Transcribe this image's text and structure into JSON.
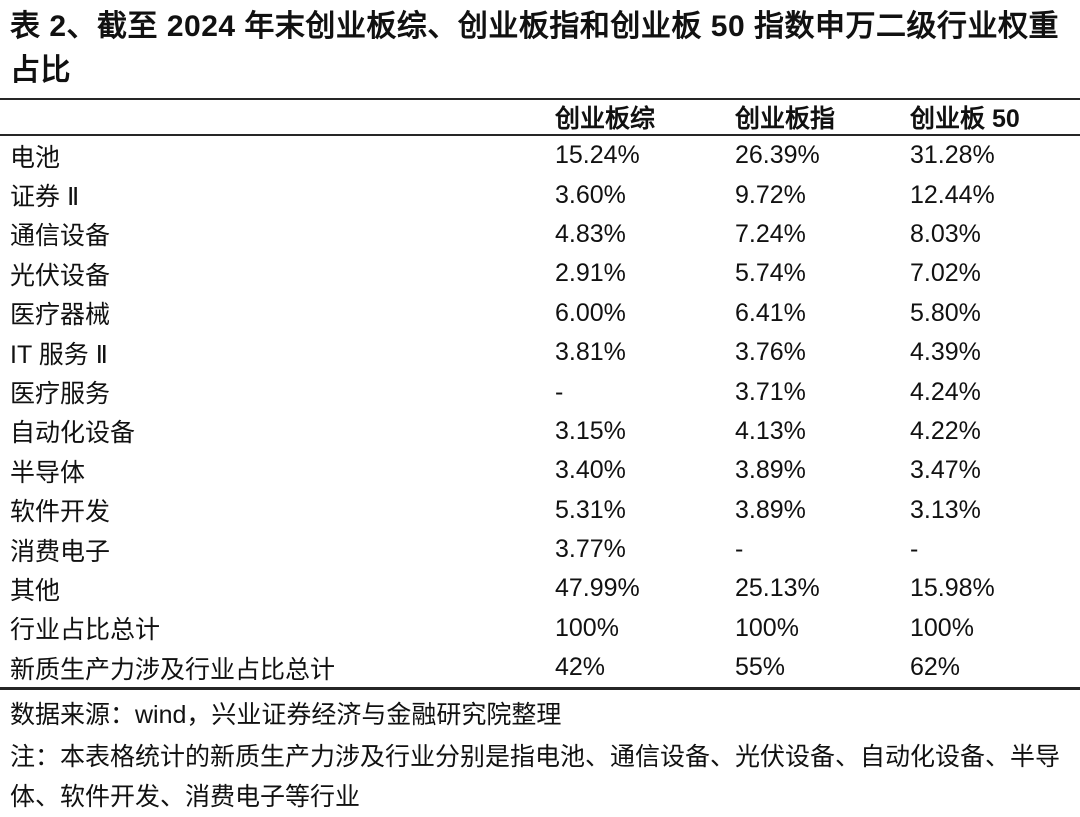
{
  "title": "表 2、截至 2024 年末创业板综、创业板指和创业板 50 指数申万二级行业权重占比",
  "table": {
    "columns": [
      "创业板综",
      "创业板指",
      "创业板 50"
    ],
    "rows": [
      {
        "label": "电池",
        "values": [
          "15.24%",
          "26.39%",
          "31.28%"
        ]
      },
      {
        "label": "证券 Ⅱ",
        "values": [
          "3.60%",
          "9.72%",
          "12.44%"
        ]
      },
      {
        "label": "通信设备",
        "values": [
          "4.83%",
          "7.24%",
          "8.03%"
        ]
      },
      {
        "label": "光伏设备",
        "values": [
          "2.91%",
          "5.74%",
          "7.02%"
        ]
      },
      {
        "label": "医疗器械",
        "values": [
          "6.00%",
          "6.41%",
          "5.80%"
        ]
      },
      {
        "label": "IT 服务 Ⅱ",
        "values": [
          "3.81%",
          "3.76%",
          "4.39%"
        ]
      },
      {
        "label": "医疗服务",
        "values": [
          "-",
          "3.71%",
          "4.24%"
        ]
      },
      {
        "label": "自动化设备",
        "values": [
          "3.15%",
          "4.13%",
          "4.22%"
        ]
      },
      {
        "label": "半导体",
        "values": [
          "3.40%",
          "3.89%",
          "3.47%"
        ]
      },
      {
        "label": "软件开发",
        "values": [
          "5.31%",
          "3.89%",
          "3.13%"
        ]
      },
      {
        "label": "消费电子",
        "values": [
          "3.77%",
          "-",
          "-"
        ]
      },
      {
        "label": "其他",
        "values": [
          "47.99%",
          "25.13%",
          "15.98%"
        ]
      },
      {
        "label": "行业占比总计",
        "values": [
          "100%",
          "100%",
          "100%"
        ]
      },
      {
        "label": "新质生产力涉及行业占比总计",
        "values": [
          "42%",
          "55%",
          "62%"
        ]
      }
    ]
  },
  "footer": {
    "source": "数据来源：wind，兴业证券经济与金融研究院整理",
    "note": "注：本表格统计的新质生产力涉及行业分别是指电池、通信设备、光伏设备、自动化设备、半导体、软件开发、消费电子等行业"
  },
  "colors": {
    "background": "#ffffff",
    "text": "#111111",
    "rule": "#262626"
  }
}
